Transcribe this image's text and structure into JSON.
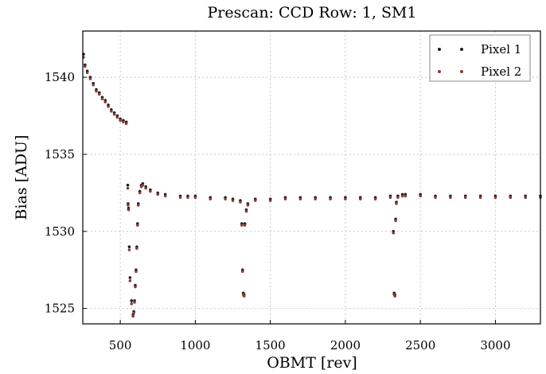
{
  "chart_data": {
    "type": "scatter",
    "title": "Prescan: CCD Row: 1, SM1",
    "xlabel": "OBMT [rev]",
    "ylabel": "Bias [ADU]",
    "xlim": [
      250,
      3300
    ],
    "ylim": [
      1524,
      1543
    ],
    "xticks": [
      500,
      1000,
      1500,
      2000,
      2500,
      3000
    ],
    "yticks": [
      1525,
      1530,
      1535,
      1540
    ],
    "grid": true,
    "legend": "top-right",
    "series": [
      {
        "name": "Pixel 1",
        "color": "#1a1a1a",
        "x": [
          255,
          265,
          280,
          300,
          320,
          340,
          360,
          380,
          400,
          420,
          440,
          460,
          480,
          500,
          520,
          540,
          550,
          552,
          555,
          560,
          565,
          575,
          585,
          590,
          595,
          600,
          605,
          610,
          615,
          620,
          630,
          640,
          650,
          670,
          700,
          750,
          800,
          900,
          950,
          1000,
          1100,
          1200,
          1250,
          1300,
          1310,
          1315,
          1320,
          1325,
          1330,
          1340,
          1350,
          1400,
          1500,
          1600,
          1700,
          1800,
          1900,
          2000,
          2100,
          2200,
          2300,
          2320,
          2325,
          2330,
          2335,
          2340,
          2350,
          2380,
          2400,
          2500,
          2600,
          2700,
          2800,
          2900,
          3000,
          3100,
          3200,
          3300
        ],
        "y": [
          1541.5,
          1540.8,
          1540.4,
          1540.0,
          1539.6,
          1539.2,
          1539.0,
          1538.7,
          1538.5,
          1538.2,
          1537.9,
          1537.7,
          1537.5,
          1537.3,
          1537.2,
          1537.1,
          1533.0,
          1531.8,
          1531.5,
          1529.0,
          1527.0,
          1525.5,
          1524.6,
          1524.8,
          1525.5,
          1526.5,
          1527.5,
          1529.0,
          1530.5,
          1531.8,
          1532.6,
          1533.0,
          1533.1,
          1532.9,
          1532.7,
          1532.5,
          1532.4,
          1532.3,
          1532.3,
          1532.3,
          1532.2,
          1532.2,
          1532.1,
          1532.0,
          1530.5,
          1527.5,
          1526.0,
          1525.9,
          1530.5,
          1531.4,
          1531.8,
          1532.1,
          1532.1,
          1532.2,
          1532.2,
          1532.2,
          1532.2,
          1532.2,
          1532.2,
          1532.2,
          1532.3,
          1530.0,
          1526.0,
          1525.9,
          1530.8,
          1531.9,
          1532.3,
          1532.4,
          1532.4,
          1532.4,
          1532.3,
          1532.3,
          1532.3,
          1532.3,
          1532.3,
          1532.3,
          1532.3,
          1532.3
        ]
      },
      {
        "name": "Pixel 2",
        "color": "#8b3a3a",
        "x": [
          255,
          265,
          280,
          300,
          320,
          340,
          360,
          380,
          400,
          420,
          440,
          460,
          480,
          500,
          520,
          540,
          550,
          552,
          555,
          560,
          565,
          575,
          585,
          590,
          595,
          600,
          605,
          610,
          615,
          620,
          630,
          640,
          650,
          670,
          700,
          750,
          800,
          900,
          950,
          1000,
          1100,
          1200,
          1250,
          1300,
          1310,
          1315,
          1320,
          1325,
          1330,
          1340,
          1350,
          1400,
          1500,
          1600,
          1700,
          1800,
          1900,
          2000,
          2100,
          2200,
          2300,
          2320,
          2325,
          2330,
          2335,
          2340,
          2350,
          2380,
          2400,
          2500,
          2600,
          2700,
          2800,
          2900,
          3000,
          3100,
          3200,
          3300
        ],
        "y": [
          1541.3,
          1540.7,
          1540.3,
          1539.9,
          1539.5,
          1539.1,
          1538.9,
          1538.6,
          1538.4,
          1538.1,
          1537.8,
          1537.6,
          1537.4,
          1537.2,
          1537.1,
          1537.0,
          1532.8,
          1531.7,
          1531.4,
          1528.8,
          1526.8,
          1525.3,
          1524.5,
          1524.7,
          1525.4,
          1526.4,
          1527.4,
          1528.9,
          1530.4,
          1531.7,
          1532.5,
          1532.9,
          1533.0,
          1532.8,
          1532.6,
          1532.4,
          1532.3,
          1532.2,
          1532.2,
          1532.2,
          1532.1,
          1532.1,
          1532.0,
          1531.9,
          1530.4,
          1527.4,
          1525.9,
          1525.8,
          1530.4,
          1531.3,
          1531.7,
          1532.0,
          1532.0,
          1532.1,
          1532.1,
          1532.1,
          1532.1,
          1532.1,
          1532.1,
          1532.1,
          1532.2,
          1529.9,
          1525.9,
          1525.8,
          1530.7,
          1531.8,
          1532.2,
          1532.3,
          1532.3,
          1532.3,
          1532.2,
          1532.2,
          1532.2,
          1532.2,
          1532.2,
          1532.2,
          1532.2,
          1532.2
        ]
      }
    ]
  }
}
